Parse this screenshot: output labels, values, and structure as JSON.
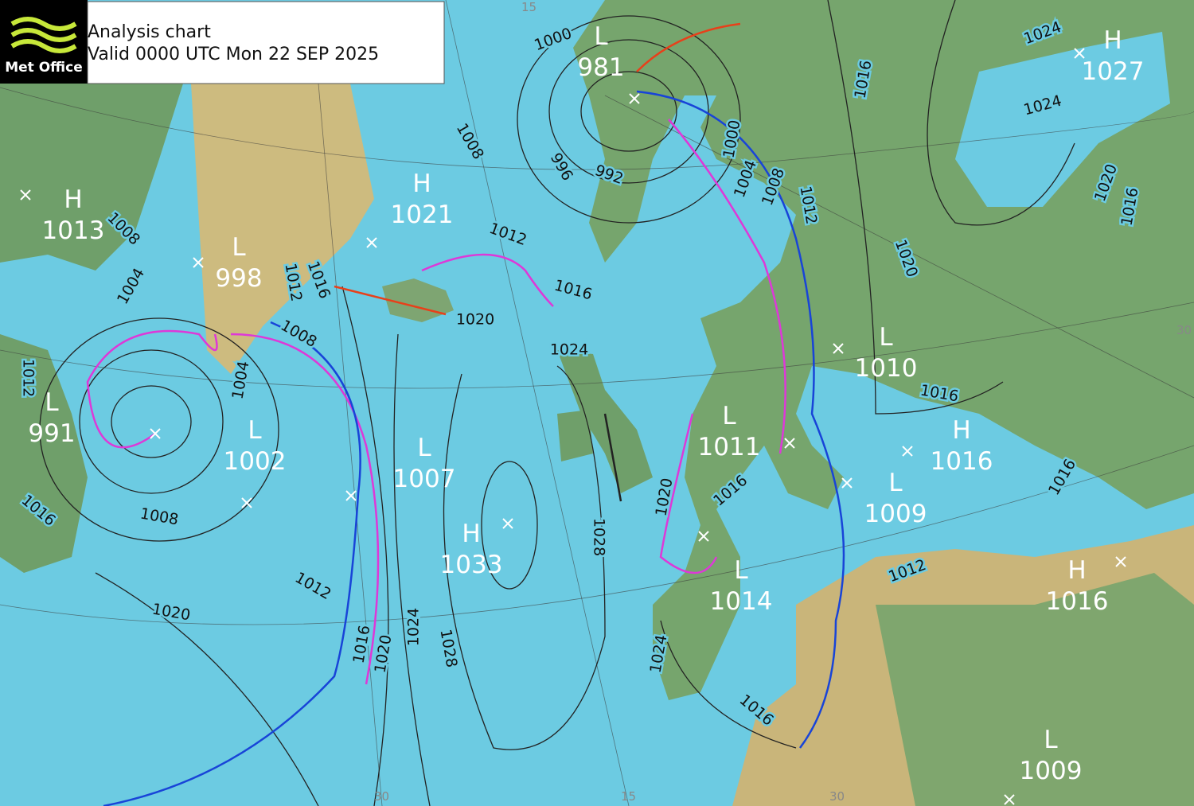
{
  "header": {
    "logo": "Met Office",
    "title": "Analysis chart",
    "valid": "Valid 0000 UTC Mon 22 SEP 2025"
  },
  "pressure_centres": [
    {
      "type": "L",
      "pressure": 981
    },
    {
      "type": "H",
      "pressure": 1027
    },
    {
      "type": "H",
      "pressure": 1013
    },
    {
      "type": "H",
      "pressure": 1021
    },
    {
      "type": "L",
      "pressure": 998
    },
    {
      "type": "L",
      "pressure": 991
    },
    {
      "type": "L",
      "pressure": 1002
    },
    {
      "type": "L",
      "pressure": 1007
    },
    {
      "type": "H",
      "pressure": 1033
    },
    {
      "type": "L",
      "pressure": 1010
    },
    {
      "type": "L",
      "pressure": 1011
    },
    {
      "type": "H",
      "pressure": 1016
    },
    {
      "type": "L",
      "pressure": 1009
    },
    {
      "type": "L",
      "pressure": 1014
    },
    {
      "type": "H",
      "pressure": 1016
    },
    {
      "type": "L",
      "pressure": 1009
    }
  ],
  "isobar_labels": [
    1000,
    1008,
    996,
    992,
    1012,
    1016,
    1020,
    1024,
    1008,
    1004,
    1012,
    1016,
    1008,
    1004,
    1012,
    1016,
    1008,
    1012,
    1020,
    1016,
    1020,
    1024,
    1028,
    1028,
    1020,
    1016,
    1024,
    1016,
    1000,
    1004,
    1008,
    1012,
    1016,
    1020,
    1024,
    1024,
    1020,
    1016,
    1016,
    1016,
    1012
  ],
  "grid_labels": [
    15,
    30,
    15,
    30,
    30
  ]
}
